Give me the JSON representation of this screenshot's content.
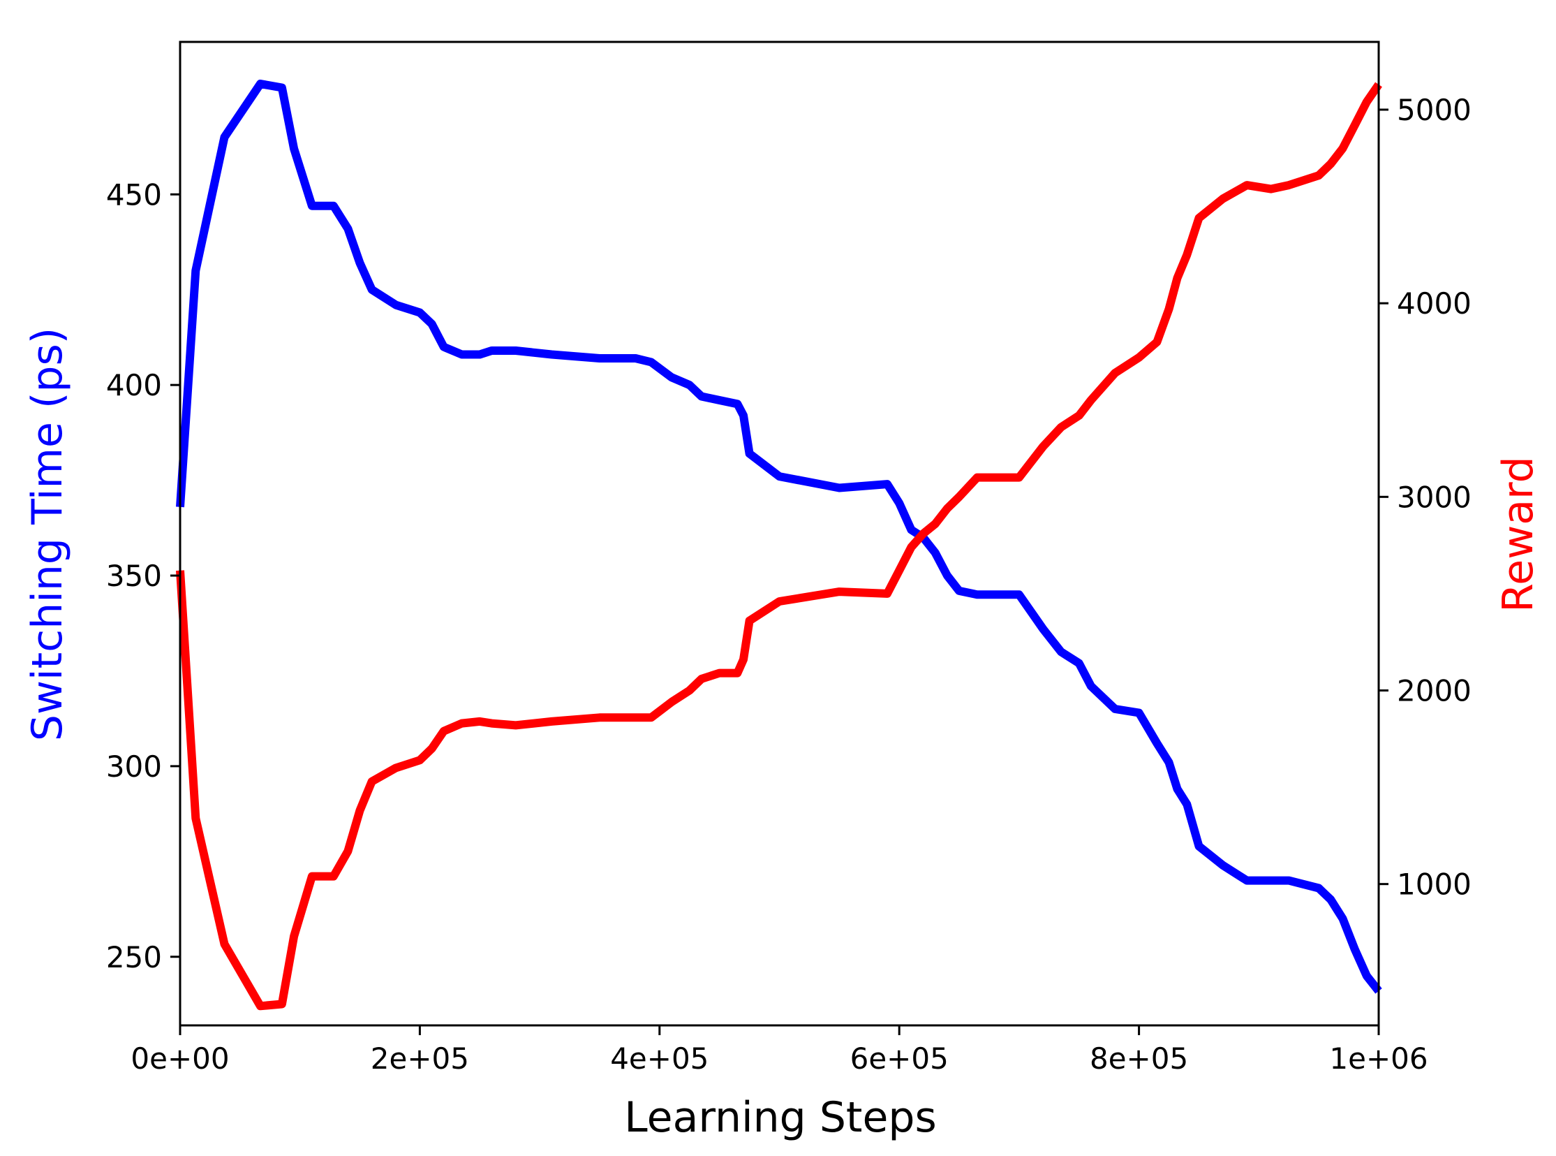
{
  "chart_data": {
    "type": "line",
    "xlabel": "Learning Steps",
    "ylabel_left": "Switching Time (ps)",
    "ylabel_right": "Reward",
    "xlim": [
      0,
      1000000
    ],
    "ylim_left": [
      232,
      490
    ],
    "ylim_right": [
      270,
      5350
    ],
    "x_ticks": [
      {
        "value": 0,
        "label": "0e+00"
      },
      {
        "value": 200000,
        "label": "2e+05"
      },
      {
        "value": 400000,
        "label": "4e+05"
      },
      {
        "value": 600000,
        "label": "6e+05"
      },
      {
        "value": 800000,
        "label": "8e+05"
      },
      {
        "value": 1000000,
        "label": "1e+06"
      }
    ],
    "y_left_ticks": [
      {
        "value": 250,
        "label": "250"
      },
      {
        "value": 300,
        "label": "300"
      },
      {
        "value": 350,
        "label": "350"
      },
      {
        "value": 400,
        "label": "400"
      },
      {
        "value": 450,
        "label": "450"
      }
    ],
    "y_right_ticks": [
      {
        "value": 1000,
        "label": "1000"
      },
      {
        "value": 2000,
        "label": "2000"
      },
      {
        "value": 3000,
        "label": "3000"
      },
      {
        "value": 4000,
        "label": "4000"
      },
      {
        "value": 5000,
        "label": "5000"
      }
    ],
    "grid": false,
    "legend": "none",
    "colors": {
      "switching_time": "#0000ff",
      "reward": "#ff0000",
      "axis": "#000000"
    },
    "series": [
      {
        "axis": "left",
        "x": [
          0,
          13000,
          37000,
          67000,
          85000,
          95000,
          110000,
          128000,
          140000,
          150000,
          160000,
          180000,
          200000,
          210000,
          220000,
          235000,
          250000,
          260000,
          280000,
          310000,
          350000,
          380000,
          393000,
          410000,
          425000,
          435000,
          450000,
          465000,
          470000,
          475000,
          500000,
          550000,
          590000,
          600000,
          610000,
          620000,
          630000,
          640000,
          650000,
          665000,
          700000,
          720000,
          735000,
          750000,
          760000,
          780000,
          800000,
          815000,
          825000,
          832000,
          840000,
          850000,
          870000,
          890000,
          910000,
          925000,
          950000,
          960000,
          970000,
          980000,
          990000,
          1000000
        ],
        "values": [
          368,
          430,
          465,
          479,
          478,
          462,
          447,
          447,
          441,
          432,
          425,
          421,
          419,
          416,
          410,
          408,
          408,
          409,
          409,
          408,
          407,
          407,
          406,
          402,
          400,
          397,
          396,
          395,
          392,
          382,
          376,
          373,
          374,
          369,
          362,
          360,
          356,
          350,
          346,
          345,
          345,
          336,
          330,
          327,
          321,
          315,
          314,
          306,
          301,
          294,
          290,
          279,
          274,
          270,
          270,
          270,
          268,
          265,
          260,
          252,
          245,
          241
        ]
      },
      {
        "axis": "right",
        "x": [
          0,
          13000,
          37000,
          67000,
          85000,
          95000,
          110000,
          128000,
          140000,
          150000,
          160000,
          180000,
          200000,
          210000,
          220000,
          235000,
          250000,
          260000,
          280000,
          310000,
          350000,
          380000,
          393000,
          410000,
          425000,
          435000,
          450000,
          465000,
          470000,
          475000,
          500000,
          550000,
          590000,
          600000,
          610000,
          620000,
          630000,
          640000,
          650000,
          665000,
          700000,
          720000,
          735000,
          750000,
          760000,
          780000,
          800000,
          815000,
          825000,
          832000,
          840000,
          850000,
          870000,
          890000,
          910000,
          925000,
          950000,
          960000,
          970000,
          980000,
          990000,
          1000000
        ],
        "values": [
          2620,
          1340,
          690,
          370,
          380,
          730,
          1040,
          1040,
          1170,
          1380,
          1530,
          1600,
          1640,
          1700,
          1790,
          1830,
          1840,
          1830,
          1820,
          1840,
          1860,
          1860,
          1860,
          1940,
          2000,
          2060,
          2090,
          2090,
          2160,
          2360,
          2460,
          2510,
          2500,
          2620,
          2740,
          2810,
          2860,
          2940,
          3000,
          3100,
          3100,
          3260,
          3360,
          3420,
          3500,
          3640,
          3720,
          3800,
          3970,
          4130,
          4250,
          4440,
          4540,
          4610,
          4590,
          4610,
          4660,
          4720,
          4800,
          4920,
          5040,
          5130
        ]
      }
    ]
  }
}
